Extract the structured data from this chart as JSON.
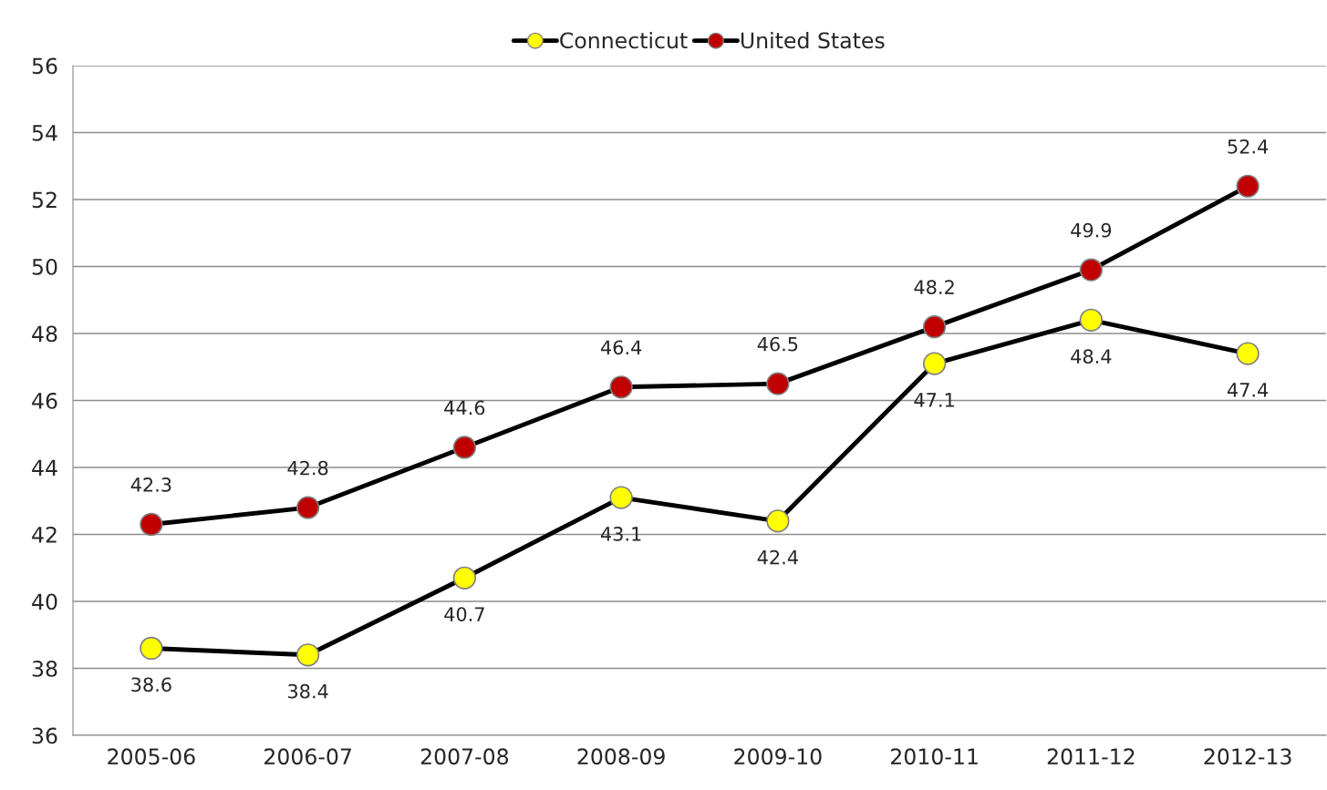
{
  "chart_data": {
    "type": "line",
    "categories": [
      "2005-06",
      "2006-07",
      "2007-08",
      "2008-09",
      "2009-10",
      "2010-11",
      "2011-12",
      "2012-13"
    ],
    "series": [
      {
        "name": "Connecticut",
        "color": "#ffff00",
        "values": [
          38.6,
          38.4,
          40.7,
          43.1,
          42.4,
          47.1,
          48.4,
          47.4
        ]
      },
      {
        "name": "United States",
        "color": "#c00000",
        "values": [
          42.3,
          42.8,
          44.6,
          46.4,
          46.5,
          48.2,
          49.9,
          52.4
        ]
      }
    ],
    "ylim": [
      36,
      56
    ],
    "yticks": [
      36,
      38,
      40,
      42,
      44,
      46,
      48,
      50,
      52,
      54,
      56
    ],
    "grid": "y",
    "legend": "top",
    "marker": "circle",
    "line_style": "solid",
    "data_labels": true
  }
}
